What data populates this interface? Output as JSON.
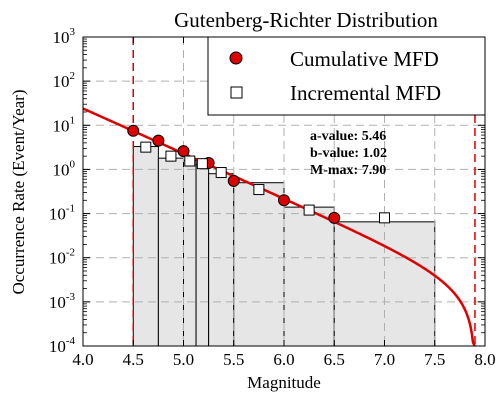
{
  "chart_data": {
    "type": "bar",
    "title": "Gutenberg-Richter Distribution",
    "xlabel": "Magnitude",
    "ylabel": "Occurrence Rate (Event/Year)",
    "xlim": [
      4.0,
      8.0
    ],
    "ylim": [
      0.0001,
      1000
    ],
    "yscale": "log",
    "grid": true,
    "legend_position": "top-right",
    "x_ticks": [
      "4.0",
      "4.5",
      "5.0",
      "5.5",
      "6.0",
      "6.5",
      "7.0",
      "7.5",
      "8.0"
    ],
    "x_tick_values": [
      4.0,
      4.5,
      5.0,
      5.5,
      6.0,
      6.5,
      7.0,
      7.5,
      8.0
    ],
    "y_tick_exponents": [
      "-4",
      "-3",
      "-2",
      "-1",
      "0",
      "1",
      "2",
      "3"
    ],
    "y_tick_base": "10",
    "histogram_bins": [
      {
        "x0": 4.5,
        "x1": 4.75,
        "value": 3.3
      },
      {
        "x0": 4.75,
        "x1": 5.0,
        "value": 1.8
      },
      {
        "x0": 5.0,
        "x1": 5.125,
        "value": 1.6
      },
      {
        "x0": 5.125,
        "x1": 5.25,
        "value": 1.3
      },
      {
        "x0": 5.25,
        "x1": 5.5,
        "value": 0.8
      },
      {
        "x0": 5.5,
        "x1": 6.0,
        "value": 0.5
      },
      {
        "x0": 6.0,
        "x1": 6.5,
        "value": 0.14
      },
      {
        "x0": 6.5,
        "x1": 7.5,
        "value": 0.065
      }
    ],
    "series": [
      {
        "name": "Cumulative MFD",
        "marker": "circle",
        "color": "#dd0000",
        "x": [
          4.5,
          4.75,
          5.0,
          5.25,
          5.5,
          6.0,
          6.5
        ],
        "y": [
          7.5,
          4.5,
          2.6,
          1.4,
          0.55,
          0.2,
          0.08
        ]
      },
      {
        "name": "Incremental MFD",
        "marker": "square",
        "color": "#ffffff",
        "x": [
          4.625,
          4.875,
          5.0625,
          5.1875,
          5.375,
          5.75,
          6.25,
          7.0
        ],
        "y": [
          3.2,
          2.0,
          1.55,
          1.35,
          0.85,
          0.35,
          0.12,
          0.08
        ]
      }
    ],
    "gr_curve": {
      "a_value": 5.46,
      "b_value": 1.02,
      "m_min": 4.5,
      "m_max": 7.9,
      "color": "#dd0000"
    },
    "vertical_lines": [
      4.5,
      7.9
    ],
    "annotations": {
      "a_value": "a-value: 5.46",
      "b_value": "b-value: 1.02",
      "m_max": "M-max: 7.90"
    }
  }
}
